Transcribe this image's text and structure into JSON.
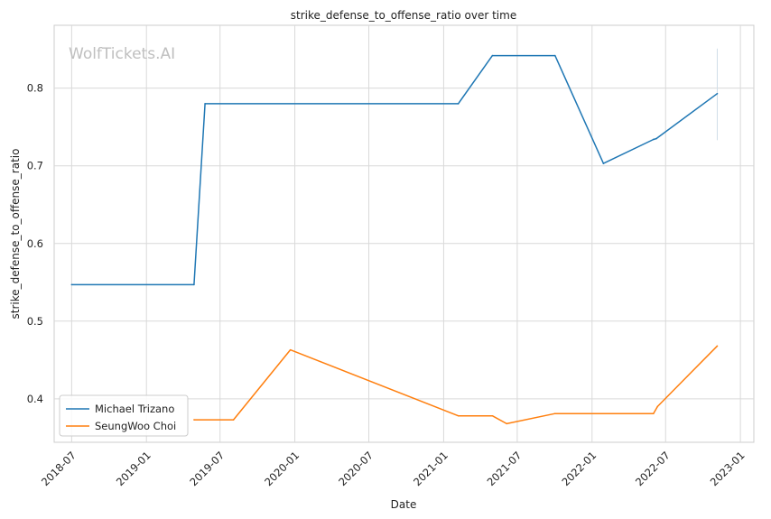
{
  "chart_data": {
    "type": "line",
    "title": "strike_defense_to_offense_ratio over time",
    "xlabel": "Date",
    "ylabel": "strike_defense_to_offense_ratio",
    "watermark": "WolfTickets.AI",
    "xlim": [
      "2018-05-19",
      "2023-02-03"
    ],
    "ylim": [
      0.344,
      0.881
    ],
    "x_ticks": [
      "2018-07",
      "2019-01",
      "2019-07",
      "2020-01",
      "2020-07",
      "2021-01",
      "2021-07",
      "2022-01",
      "2022-07",
      "2023-01"
    ],
    "y_ticks": [
      0.4,
      0.5,
      0.6,
      0.7,
      0.8
    ],
    "grid": true,
    "legend_position": "bottom-left",
    "series": [
      {
        "name": "Michael Trizano",
        "color": "#1f77b4",
        "points": [
          {
            "x": "2018-07-01",
            "y": 0.547
          },
          {
            "x": "2019-04-28",
            "y": 0.547
          },
          {
            "x": "2019-05-25",
            "y": 0.78
          },
          {
            "x": "2021-02-06",
            "y": 0.78
          },
          {
            "x": "2021-05-01",
            "y": 0.842
          },
          {
            "x": "2021-10-02",
            "y": 0.842
          },
          {
            "x": "2022-01-29",
            "y": 0.703
          },
          {
            "x": "2022-06-01",
            "y": 0.734
          },
          {
            "x": "2022-06-08",
            "y": 0.735
          },
          {
            "x": "2022-11-05",
            "y": 0.793
          }
        ]
      },
      {
        "name": "SeungWoo Choi",
        "color": "#ff7f0e",
        "points": [
          {
            "x": "2019-04-28",
            "y": 0.373
          },
          {
            "x": "2019-08-03",
            "y": 0.373
          },
          {
            "x": "2019-12-21",
            "y": 0.463
          },
          {
            "x": "2021-02-06",
            "y": 0.378
          },
          {
            "x": "2021-05-01",
            "y": 0.378
          },
          {
            "x": "2021-06-05",
            "y": 0.368
          },
          {
            "x": "2021-10-02",
            "y": 0.381
          },
          {
            "x": "2022-06-01",
            "y": 0.381
          },
          {
            "x": "2022-06-11",
            "y": 0.39
          },
          {
            "x": "2022-11-05",
            "y": 0.468
          }
        ]
      }
    ],
    "annotations": [
      {
        "type": "vertical-segment",
        "x": "2022-11-05",
        "y_from": 0.733,
        "y_to": 0.851,
        "color": "#d0dde8"
      }
    ]
  }
}
